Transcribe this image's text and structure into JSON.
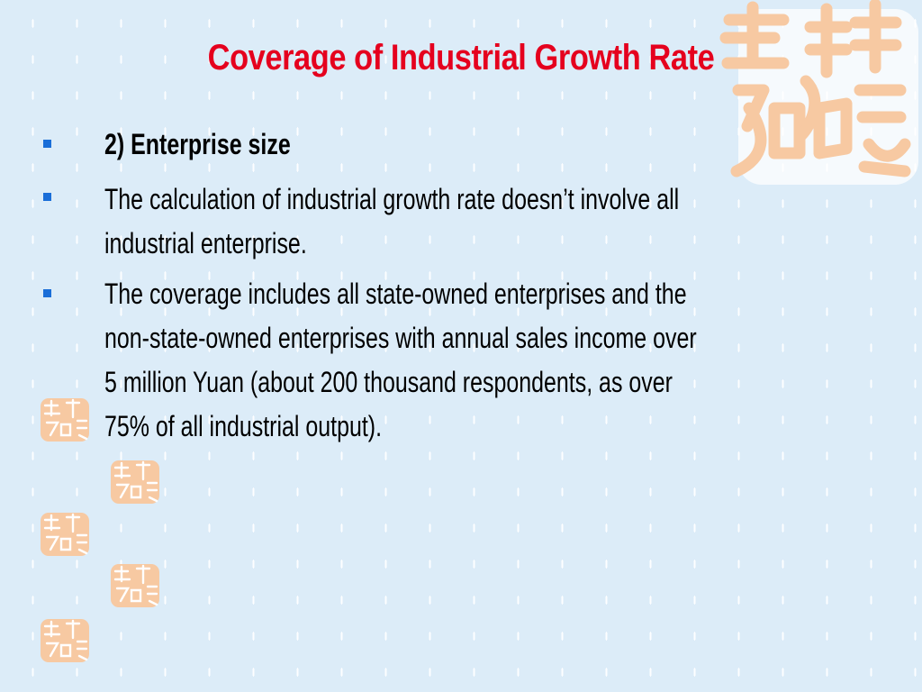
{
  "slide": {
    "title": "Coverage  of Industrial Growth Rate",
    "bullets": [
      {
        "lines": [
          "2) Enterprise size"
        ],
        "bold": true
      },
      {
        "lines": [
          "The calculation of industrial growth rate doesn’t involve all",
          "industrial enterprise."
        ],
        "bold": false
      },
      {
        "lines": [
          "The coverage includes all state-owned enterprises and the",
          "non-state-owned enterprises with annual sales income over",
          "5 million Yuan (about 200 thousand respondents, as over",
          "75% of all industrial output)."
        ],
        "bold": false
      }
    ]
  },
  "colors": {
    "title": "#e5001e",
    "bullet": "#1a6ed8",
    "background": "#dcecf8",
    "seal": "#f7c9a2"
  },
  "decorations": {
    "seal_icon": "seal-icon"
  }
}
